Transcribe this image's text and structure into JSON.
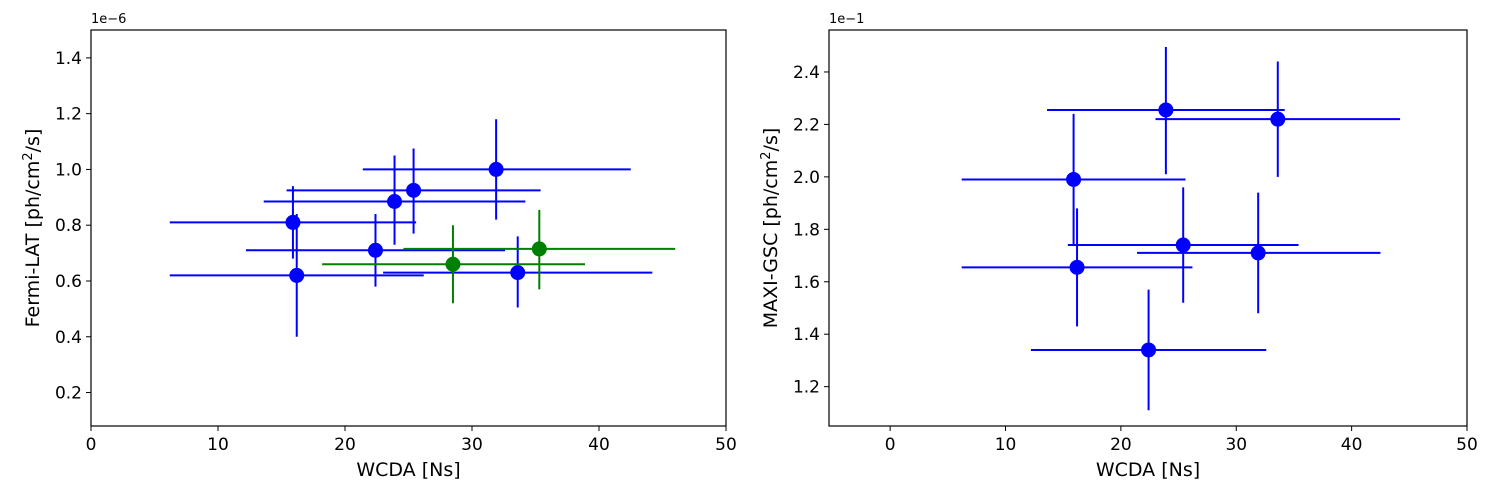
{
  "chart_data": [
    {
      "type": "scatter",
      "xlabel": "WCDA [Ns]",
      "ylabel_main": "Fermi-LAT [ph/cm",
      "ylabel_sup": "2",
      "ylabel_tail": "/s]",
      "exponent_label": "1e−6",
      "xlim": [
        0,
        50
      ],
      "ylim": [
        0.08,
        1.5
      ],
      "xticks": [
        0,
        10,
        20,
        30,
        40,
        50
      ],
      "xtick_labels": [
        "0",
        "10",
        "20",
        "30",
        "40",
        "50"
      ],
      "yticks": [
        0.2,
        0.4,
        0.6,
        0.8,
        1.0,
        1.2,
        1.4
      ],
      "ytick_labels": [
        "0.2",
        "0.4",
        "0.6",
        "0.8",
        "1.0",
        "1.2",
        "1.4"
      ],
      "grid": false,
      "colors": [
        "#0000ff",
        "#008000"
      ],
      "series": [
        {
          "color": "#0000ff",
          "points": [
            {
              "x": 15.9,
              "y": 0.81,
              "xlo": 6.2,
              "xhi": 25.6,
              "ylo": 0.68,
              "yhi": 0.94
            },
            {
              "x": 16.2,
              "y": 0.62,
              "xlo": 6.2,
              "xhi": 26.2,
              "ylo": 0.4,
              "yhi": 0.84
            },
            {
              "x": 22.4,
              "y": 0.71,
              "xlo": 12.2,
              "xhi": 32.6,
              "ylo": 0.58,
              "yhi": 0.84
            },
            {
              "x": 23.9,
              "y": 0.885,
              "xlo": 13.6,
              "xhi": 34.2,
              "ylo": 0.73,
              "yhi": 1.05
            },
            {
              "x": 25.4,
              "y": 0.925,
              "xlo": 15.4,
              "xhi": 35.4,
              "ylo": 0.77,
              "yhi": 1.075
            },
            {
              "x": 31.9,
              "y": 1.0,
              "xlo": 21.4,
              "xhi": 42.5,
              "ylo": 0.82,
              "yhi": 1.18
            },
            {
              "x": 33.6,
              "y": 0.63,
              "xlo": 23.0,
              "xhi": 44.2,
              "ylo": 0.505,
              "yhi": 0.76
            }
          ]
        },
        {
          "color": "#008000",
          "points": [
            {
              "x": 28.5,
              "y": 0.66,
              "xlo": 18.2,
              "xhi": 38.9,
              "ylo": 0.52,
              "yhi": 0.8
            },
            {
              "x": 35.3,
              "y": 0.715,
              "xlo": 24.6,
              "xhi": 46.0,
              "ylo": 0.57,
              "yhi": 0.855
            }
          ]
        }
      ]
    },
    {
      "type": "scatter",
      "xlabel": "WCDA [Ns]",
      "ylabel_main": "MAXI-GSC [ph/cm",
      "ylabel_sup": "2",
      "ylabel_tail": "/s]",
      "exponent_label": "1e−1",
      "xlim": [
        -5.3,
        50
      ],
      "ylim": [
        1.05,
        2.56
      ],
      "xticks": [
        0,
        10,
        20,
        30,
        40,
        50
      ],
      "xtick_labels": [
        "0",
        "10",
        "20",
        "30",
        "40",
        "50"
      ],
      "yticks": [
        1.2,
        1.4,
        1.6,
        1.8,
        2.0,
        2.2,
        2.4
      ],
      "ytick_labels": [
        "1.2",
        "1.4",
        "1.6",
        "1.8",
        "2.0",
        "2.2",
        "2.4"
      ],
      "grid": false,
      "colors": [
        "#0000ff"
      ],
      "series": [
        {
          "color": "#0000ff",
          "points": [
            {
              "x": 15.9,
              "y": 1.99,
              "xlo": 6.2,
              "xhi": 25.6,
              "ylo": 1.74,
              "yhi": 2.24
            },
            {
              "x": 16.2,
              "y": 1.655,
              "xlo": 6.2,
              "xhi": 26.2,
              "ylo": 1.43,
              "yhi": 1.88
            },
            {
              "x": 22.4,
              "y": 1.34,
              "xlo": 12.2,
              "xhi": 32.6,
              "ylo": 1.11,
              "yhi": 1.57
            },
            {
              "x": 23.9,
              "y": 2.255,
              "xlo": 13.6,
              "xhi": 34.2,
              "ylo": 2.01,
              "yhi": 2.495
            },
            {
              "x": 25.4,
              "y": 1.74,
              "xlo": 15.4,
              "xhi": 35.4,
              "ylo": 1.52,
              "yhi": 1.96
            },
            {
              "x": 31.9,
              "y": 1.71,
              "xlo": 21.4,
              "xhi": 42.5,
              "ylo": 1.48,
              "yhi": 1.94
            },
            {
              "x": 33.6,
              "y": 2.22,
              "xlo": 23.0,
              "xhi": 44.2,
              "ylo": 2.0,
              "yhi": 2.44
            }
          ]
        }
      ]
    }
  ]
}
